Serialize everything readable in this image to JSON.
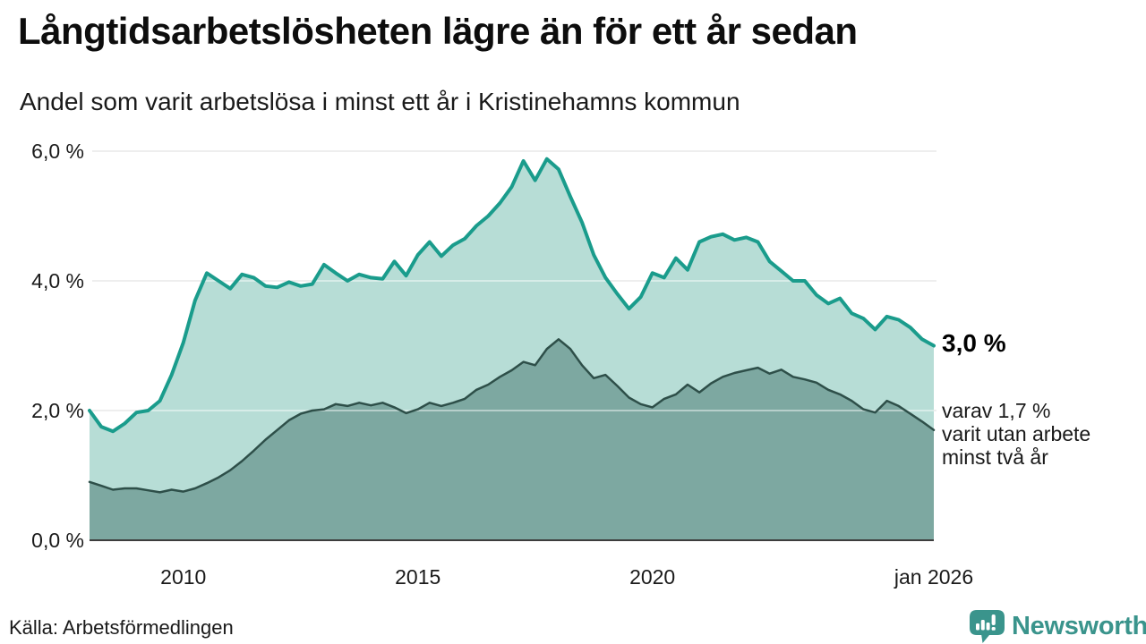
{
  "title": "Långtidsarbetslösheten lägre än för ett år sedan",
  "subtitle": "Andel som varit arbetslösa i minst ett år i Kristinehamns kommun",
  "source": "Källa: Arbetsförmedlingen",
  "branding": {
    "name": "Newsworthy",
    "color": "#3a948c",
    "icon": "speech-bubble-bar-chart-icon"
  },
  "annotations": {
    "latest_total": "3,0 %",
    "secondary_lines": [
      "varav 1,7 %",
      "varit utan arbete",
      "minst två år"
    ]
  },
  "colors": {
    "line_total": "#1a9c8c",
    "fill_total": "#b7ddd6",
    "line_two_years": "#2e4f49",
    "fill_two_years": "#7da8a1",
    "gridline": "#e0e0e0",
    "axis_baseline": "#3d3d3d",
    "text": "#1a1a1a"
  },
  "chart_data": {
    "type": "area",
    "title": "Långtidsarbetslösheten lägre än för ett år sedan",
    "subtitle": "Andel som varit arbetslösa i minst ett år i Kristinehamns kommun",
    "xlabel": "",
    "ylabel": "",
    "grid": "horizontal",
    "legend": "none",
    "ylim": [
      0,
      6
    ],
    "xlim": [
      2008,
      2026
    ],
    "y_ticks": [
      {
        "value": 0,
        "label": "0,0 %"
      },
      {
        "value": 2,
        "label": "2,0 %"
      },
      {
        "value": 4,
        "label": "4,0 %"
      },
      {
        "value": 6,
        "label": "6,0 %"
      }
    ],
    "x_ticks": [
      {
        "value": 2010,
        "label": "2010"
      },
      {
        "value": 2015,
        "label": "2015"
      },
      {
        "value": 2020,
        "label": "2020"
      },
      {
        "value": 2026,
        "label": "jan 2026"
      }
    ],
    "x": [
      2008,
      2008.25,
      2008.5,
      2008.75,
      2009,
      2009.25,
      2009.5,
      2009.75,
      2010,
      2010.25,
      2010.5,
      2010.75,
      2011,
      2011.25,
      2011.5,
      2011.75,
      2012,
      2012.25,
      2012.5,
      2012.75,
      2013,
      2013.25,
      2013.5,
      2013.75,
      2014,
      2014.25,
      2014.5,
      2014.75,
      2015,
      2015.25,
      2015.5,
      2015.75,
      2016,
      2016.25,
      2016.5,
      2016.75,
      2017,
      2017.25,
      2017.5,
      2017.75,
      2018,
      2018.25,
      2018.5,
      2018.75,
      2019,
      2019.25,
      2019.5,
      2019.75,
      2020,
      2020.25,
      2020.5,
      2020.75,
      2021,
      2021.25,
      2021.5,
      2021.75,
      2022,
      2022.25,
      2022.5,
      2022.75,
      2023,
      2023.25,
      2023.5,
      2023.75,
      2024,
      2024.25,
      2024.5,
      2024.75,
      2025,
      2025.25,
      2025.5,
      2025.75,
      2026
    ],
    "series": [
      {
        "name": "Arbetslösa minst ett år",
        "line_color": "#1a9c8c",
        "fill_color": "#b7ddd6",
        "line_width": 4,
        "last_value": 3.0,
        "values": [
          2.0,
          1.75,
          1.68,
          1.8,
          1.97,
          2.0,
          2.15,
          2.55,
          3.05,
          3.7,
          4.12,
          4.0,
          3.88,
          4.1,
          4.05,
          3.92,
          3.9,
          3.98,
          3.92,
          3.95,
          4.25,
          4.12,
          4.0,
          4.1,
          4.05,
          4.03,
          4.3,
          4.08,
          4.4,
          4.6,
          4.38,
          4.55,
          4.65,
          4.85,
          5.0,
          5.2,
          5.45,
          5.85,
          5.55,
          5.88,
          5.72,
          5.3,
          4.9,
          4.4,
          4.05,
          3.8,
          3.57,
          3.75,
          4.12,
          4.05,
          4.35,
          4.17,
          4.6,
          4.68,
          4.72,
          4.63,
          4.67,
          4.6,
          4.3,
          4.15,
          4.0,
          4.0,
          3.78,
          3.65,
          3.73,
          3.5,
          3.42,
          3.25,
          3.45,
          3.4,
          3.28,
          3.1,
          3.0
        ]
      },
      {
        "name": "Arbetslösa minst två år",
        "line_color": "#2e4f49",
        "fill_color": "#7da8a1",
        "line_width": 2.5,
        "last_value": 1.7,
        "values": [
          0.9,
          0.84,
          0.78,
          0.8,
          0.8,
          0.77,
          0.74,
          0.78,
          0.75,
          0.8,
          0.88,
          0.97,
          1.08,
          1.22,
          1.38,
          1.55,
          1.7,
          1.85,
          1.95,
          2.0,
          2.02,
          2.1,
          2.07,
          2.12,
          2.08,
          2.12,
          2.05,
          1.96,
          2.02,
          2.12,
          2.07,
          2.12,
          2.18,
          2.32,
          2.4,
          2.52,
          2.62,
          2.75,
          2.7,
          2.95,
          3.1,
          2.95,
          2.7,
          2.5,
          2.55,
          2.38,
          2.2,
          2.1,
          2.05,
          2.18,
          2.25,
          2.4,
          2.28,
          2.42,
          2.52,
          2.58,
          2.62,
          2.66,
          2.57,
          2.63,
          2.52,
          2.48,
          2.43,
          2.32,
          2.25,
          2.15,
          2.02,
          1.97,
          2.15,
          2.07,
          1.95,
          1.83,
          1.7
        ]
      }
    ]
  }
}
